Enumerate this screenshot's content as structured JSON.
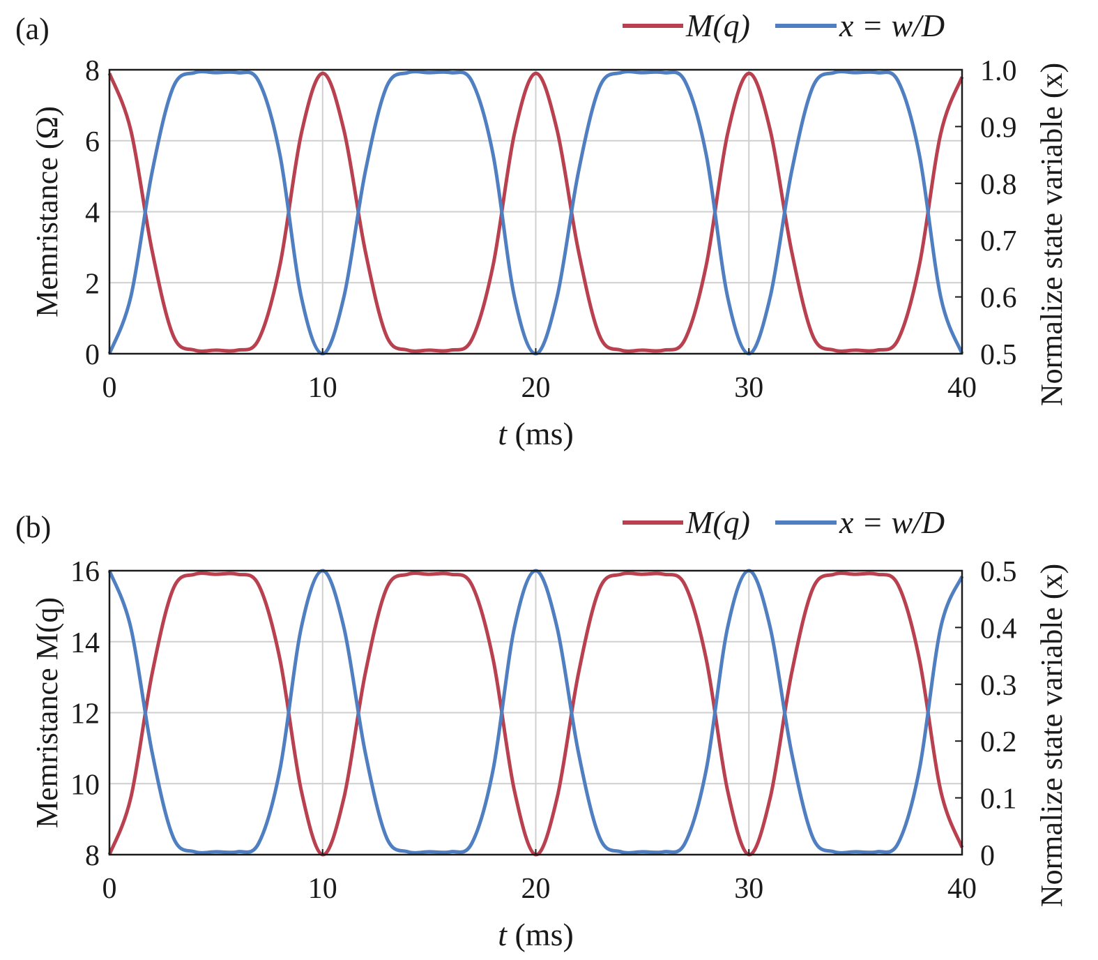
{
  "colors": {
    "m_series": "#b8404f",
    "x_series": "#4f7fc0",
    "grid": "#cfcfcf",
    "axis": "#1a1a1a"
  },
  "chart_data": [
    {
      "panel_label": "(a)",
      "type": "line",
      "x_ticks": [
        "0",
        "10",
        "20",
        "30",
        "40"
      ],
      "xlim": [
        0,
        40
      ],
      "xlabel_italic": "t",
      "xlabel_rest": "(ms)",
      "ylabel_left": "Memristance (Ω)",
      "ylabel_right": "Normalize state variable (x)",
      "ylim_left": [
        0,
        8
      ],
      "yticks_left": [
        "0",
        "2",
        "4",
        "6",
        "8"
      ],
      "ylim_right": [
        0.5,
        1.0
      ],
      "yticks_right": [
        "0.5",
        "0.6",
        "0.7",
        "0.8",
        "0.9",
        "1.0"
      ],
      "grid": true,
      "legend_position": "top-right",
      "series": [
        {
          "name": "M(q)",
          "axis": "left",
          "x": [
            0,
            1,
            2,
            3,
            4,
            5,
            6,
            7,
            8,
            9,
            10,
            11,
            12,
            13,
            14,
            15,
            16,
            17,
            18,
            19,
            20,
            21,
            22,
            23,
            24,
            25,
            26,
            27,
            28,
            29,
            30,
            31,
            32,
            33,
            34,
            35,
            36,
            37,
            38,
            39,
            40
          ],
          "y": [
            7.9,
            6.3,
            2.9,
            0.5,
            0.1,
            0.1,
            0.1,
            0.4,
            2.5,
            6.2,
            7.9,
            6.3,
            2.9,
            0.5,
            0.1,
            0.1,
            0.1,
            0.4,
            2.5,
            6.2,
            7.9,
            6.3,
            2.9,
            0.5,
            0.1,
            0.1,
            0.1,
            0.4,
            2.5,
            6.2,
            7.9,
            6.3,
            2.9,
            0.5,
            0.1,
            0.1,
            0.1,
            0.4,
            2.5,
            6.2,
            7.8
          ]
        },
        {
          "name": "x = w/D",
          "axis": "right",
          "x": [
            0,
            1,
            2,
            3,
            4,
            5,
            6,
            7,
            8,
            9,
            10,
            11,
            12,
            13,
            14,
            15,
            16,
            17,
            18,
            19,
            20,
            21,
            22,
            23,
            24,
            25,
            26,
            27,
            28,
            29,
            30,
            31,
            32,
            33,
            34,
            35,
            36,
            37,
            38,
            39,
            40
          ],
          "y": [
            0.5,
            0.6,
            0.82,
            0.97,
            0.995,
            0.995,
            0.995,
            0.98,
            0.85,
            0.6,
            0.5,
            0.6,
            0.82,
            0.97,
            0.995,
            0.995,
            0.995,
            0.98,
            0.85,
            0.6,
            0.5,
            0.6,
            0.82,
            0.97,
            0.995,
            0.995,
            0.995,
            0.98,
            0.85,
            0.6,
            0.5,
            0.6,
            0.82,
            0.97,
            0.995,
            0.995,
            0.995,
            0.98,
            0.85,
            0.6,
            0.5
          ]
        }
      ]
    },
    {
      "panel_label": "(b)",
      "type": "line",
      "x_ticks": [
        "0",
        "10",
        "20",
        "30",
        "40"
      ],
      "xlim": [
        0,
        40
      ],
      "xlabel_italic": "t",
      "xlabel_rest": "(ms)",
      "ylabel_left": "Memristance M(q)",
      "ylabel_right": "Normalize state variable (x)",
      "ylim_left": [
        8,
        16
      ],
      "yticks_left": [
        "8",
        "10",
        "12",
        "14",
        "16"
      ],
      "ylim_right": [
        0,
        0.5
      ],
      "yticks_right": [
        "0",
        "0.1",
        "0.2",
        "0.3",
        "0.4",
        "0.5"
      ],
      "grid": true,
      "legend_position": "top-right",
      "series": [
        {
          "name": "M(q)",
          "axis": "left",
          "x": [
            0,
            1,
            2,
            3,
            4,
            5,
            6,
            7,
            8,
            9,
            10,
            11,
            12,
            13,
            14,
            15,
            16,
            17,
            18,
            19,
            20,
            21,
            22,
            23,
            24,
            25,
            26,
            27,
            28,
            29,
            30,
            31,
            32,
            33,
            34,
            35,
            36,
            37,
            38,
            39,
            40
          ],
          "y": [
            8.0,
            9.6,
            13.1,
            15.5,
            15.9,
            15.9,
            15.9,
            15.6,
            13.5,
            9.8,
            8.0,
            9.6,
            13.1,
            15.5,
            15.9,
            15.9,
            15.9,
            15.6,
            13.5,
            9.8,
            8.0,
            9.6,
            13.1,
            15.5,
            15.9,
            15.9,
            15.9,
            15.6,
            13.5,
            9.8,
            8.0,
            9.6,
            13.1,
            15.5,
            15.9,
            15.9,
            15.9,
            15.6,
            13.5,
            9.8,
            8.2
          ]
        },
        {
          "name": "x = w/D",
          "axis": "right",
          "x": [
            0,
            1,
            2,
            3,
            4,
            5,
            6,
            7,
            8,
            9,
            10,
            11,
            12,
            13,
            14,
            15,
            16,
            17,
            18,
            19,
            20,
            21,
            22,
            23,
            24,
            25,
            26,
            27,
            28,
            29,
            30,
            31,
            32,
            33,
            34,
            35,
            36,
            37,
            38,
            39,
            40
          ],
          "y": [
            0.5,
            0.4,
            0.18,
            0.03,
            0.005,
            0.005,
            0.005,
            0.02,
            0.15,
            0.4,
            0.5,
            0.4,
            0.18,
            0.03,
            0.005,
            0.005,
            0.005,
            0.02,
            0.15,
            0.4,
            0.5,
            0.4,
            0.18,
            0.03,
            0.005,
            0.005,
            0.005,
            0.02,
            0.15,
            0.4,
            0.5,
            0.4,
            0.18,
            0.03,
            0.005,
            0.005,
            0.005,
            0.02,
            0.15,
            0.4,
            0.49
          ]
        }
      ]
    }
  ]
}
